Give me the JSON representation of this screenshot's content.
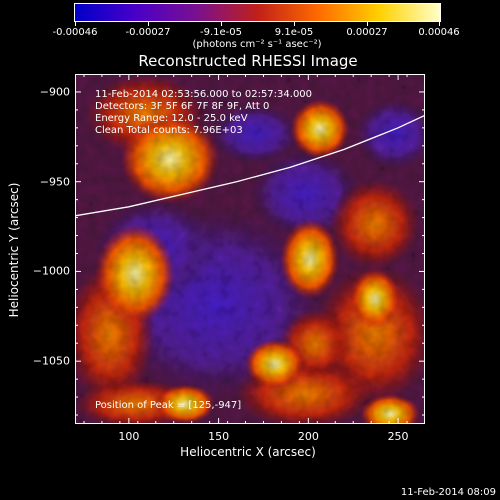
{
  "colorbar": {
    "tick_labels": [
      "-0.00046",
      "-0.00027",
      "-9.1e-05",
      "9.1e-05",
      "0.00027",
      "0.00046"
    ],
    "units": "(photons cm⁻² s⁻¹ asec⁻²)",
    "colors": [
      "#0000c8",
      "#4a00c8",
      "#7a1090",
      "#c0201a",
      "#ff6a00",
      "#ffd000",
      "#ffffc8"
    ]
  },
  "chart_data": {
    "type": "heatmap",
    "title": "Reconstructed RHESSI Image",
    "xlabel": "Heliocentric X (arcsec)",
    "ylabel": "Heliocentric Y (arcsec)",
    "xlim": [
      70,
      265
    ],
    "ylim": [
      -1085,
      -890
    ],
    "x_ticks": [
      100,
      150,
      200,
      250
    ],
    "y_ticks": [
      -900,
      -950,
      -1000,
      -1050
    ],
    "x_tick_labels": [
      "100",
      "150",
      "200",
      "250"
    ],
    "y_tick_labels": [
      "−900",
      "−950",
      "−1000",
      "−1050"
    ],
    "grid": false,
    "annotations": [
      "11-Feb-2014 02:53:56.000 to 02:57:34.000",
      "Detectors: 3F 5F 6F 7F 8F 9F, Att 0",
      "Energy Range: 12.0 - 25.0 keV",
      "Clean    Total counts: 7.96E+03"
    ],
    "peak_label": "Position of Peak = [125,-947]",
    "peak": [
      125,
      -947
    ],
    "limb_curve": [
      [
        70,
        -969
      ],
      [
        100,
        -964
      ],
      [
        130,
        -957
      ],
      [
        160,
        -950
      ],
      [
        190,
        -942
      ],
      [
        220,
        -932
      ],
      [
        250,
        -920
      ],
      [
        265,
        -913
      ]
    ]
  },
  "footer": {
    "date": "11-Feb-2014 08:09"
  }
}
